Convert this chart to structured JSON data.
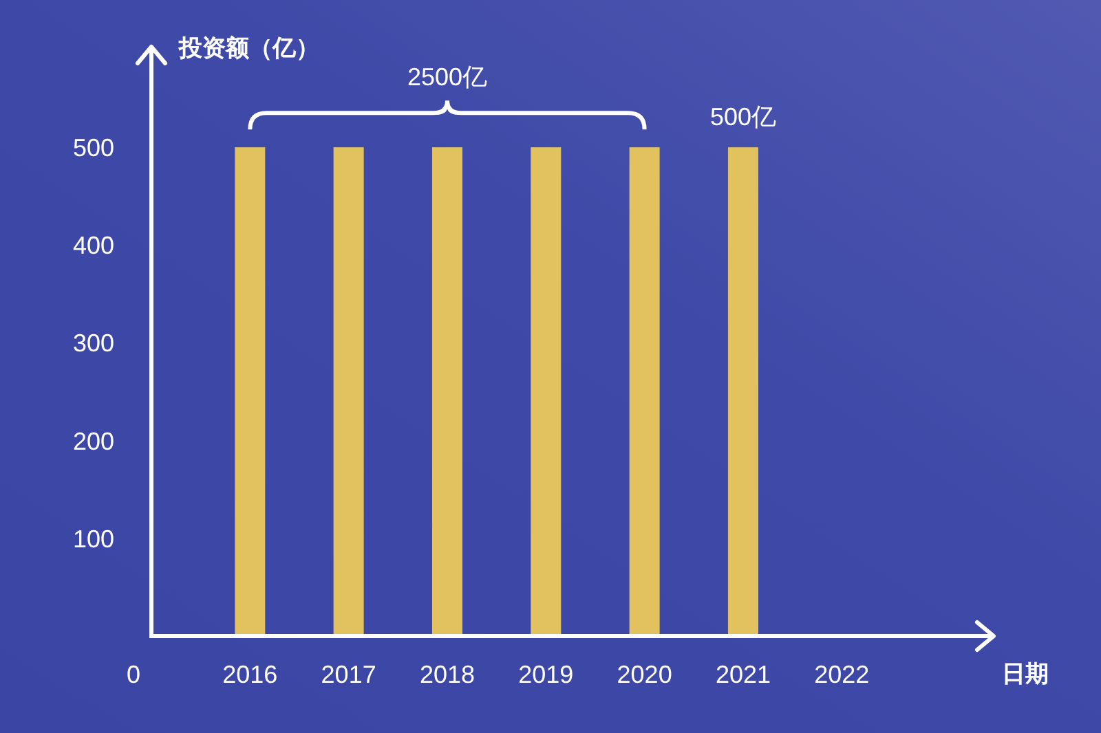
{
  "chart_data": {
    "type": "bar",
    "categories": [
      "2016",
      "2017",
      "2018",
      "2019",
      "2020",
      "2021",
      "2022"
    ],
    "values": [
      500,
      500,
      500,
      500,
      500,
      500,
      null
    ],
    "color": "#e2c25f",
    "ylabel": "投资额（亿）",
    "xlabel": "日期",
    "ylim": [
      0,
      600
    ],
    "yticks": [
      100,
      200,
      300,
      400,
      500
    ],
    "annotations": [
      {
        "text": "2500亿",
        "x": "2018",
        "y": 500
      },
      {
        "text": "500亿",
        "x": "2021",
        "y": 500
      },
      "0"
    ]
  }
}
